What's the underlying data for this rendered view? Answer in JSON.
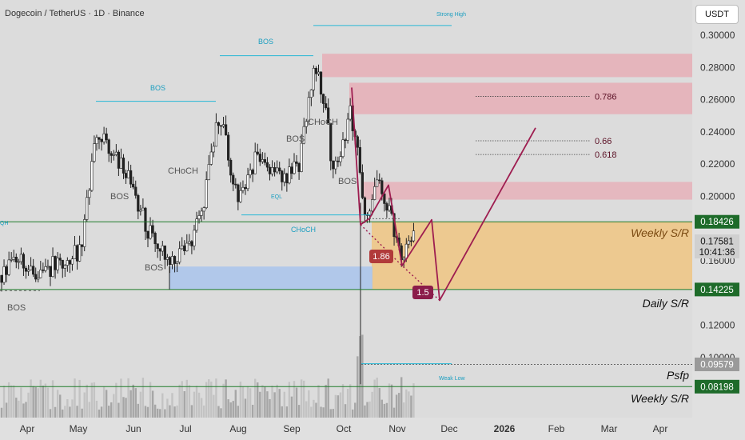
{
  "header": {
    "title": "Dogecoin / TetherUS · 1D · Binance",
    "currency": "USDT"
  },
  "chart_data": {
    "type": "candlestick",
    "y_axis": {
      "ticks": [
        "0.30000",
        "0.28000",
        "0.26000",
        "0.24000",
        "0.22000",
        "0.20000",
        "0.16000",
        "0.12000",
        "0.10000"
      ]
    },
    "x_axis": {
      "ticks": [
        "Apr",
        "May",
        "Jun",
        "Jul",
        "Aug",
        "Sep",
        "Oct",
        "Nov",
        "Dec",
        "2026",
        "Feb",
        "Mar",
        "Apr"
      ]
    },
    "price_badges": [
      {
        "value": "0.18426",
        "color": "#1e6b2a"
      },
      {
        "value": "0.17581",
        "sub": "10:41:36",
        "color": "#d0d0d0"
      },
      {
        "value": "0.14225",
        "color": "#1e6b2a"
      },
      {
        "value": "0.09579",
        "color": "#9a9a9a"
      },
      {
        "value": "0.08198",
        "color": "#1e6b2a"
      }
    ],
    "fib_levels": [
      {
        "label": "0.786",
        "value": 0.262
      },
      {
        "label": "0.66",
        "value": 0.2345
      },
      {
        "label": "0.618",
        "value": 0.226
      }
    ],
    "levels": [
      {
        "label": "Weekly S/R",
        "value": 0.18426
      },
      {
        "label": "Daily S/R",
        "value": 0.14225
      },
      {
        "label": "Psfp",
        "value": 0.09579
      },
      {
        "label": "Weekly S/R",
        "value": 0.08198
      }
    ],
    "annotations": {
      "structure": [
        "BOS",
        "BOS",
        "BOS",
        "BOS",
        "BOS",
        "BOS",
        "CHoCH",
        "CHoCH",
        "CHoCH",
        "BOS",
        "BOS",
        "EQL"
      ],
      "highs_lows": [
        "Strong High",
        "Weak Low"
      ],
      "left_cut": "QH",
      "ratio_badges": [
        "1.86",
        "1.5"
      ]
    },
    "colors": {
      "up": "#ffffff",
      "down": "#222222",
      "path": "#9e1d50",
      "level_line": "#1e7b2a",
      "supply": "#e8a8b2",
      "demand_orange": "#f3c06f",
      "demand_blue": "#a9c4ec",
      "bos_line": "#27b7d6"
    }
  }
}
